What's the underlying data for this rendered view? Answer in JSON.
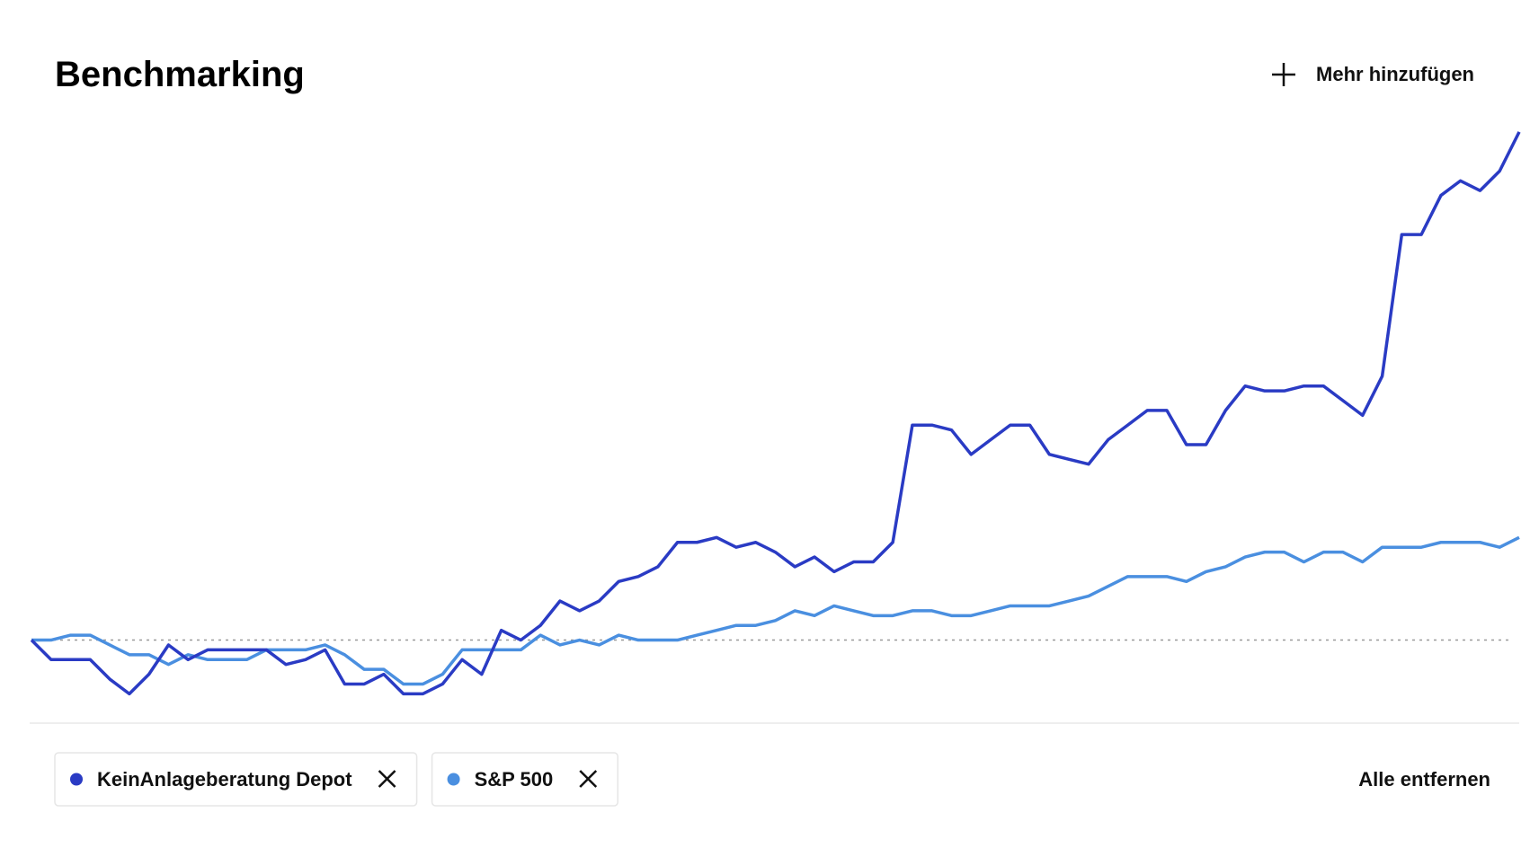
{
  "header": {
    "title": "Benchmarking",
    "add_button": "Mehr hinzufügen"
  },
  "chart_data": {
    "type": "line",
    "series": [
      {
        "name": "KeinAnlageberatung Depot",
        "color": "#2a3bc4",
        "values": [
          0,
          -4,
          -4,
          -4,
          -8,
          -11,
          -7,
          -1,
          -4,
          -2,
          -2,
          -2,
          -2,
          -5,
          -4,
          -2,
          -9,
          -9,
          -7,
          -11,
          -11,
          -9,
          -4,
          -7,
          2,
          0,
          3,
          8,
          6,
          8,
          12,
          13,
          15,
          20,
          20,
          21,
          19,
          20,
          18,
          15,
          17,
          14,
          16,
          16,
          20,
          44,
          44,
          43,
          38,
          41,
          44,
          44,
          38,
          37,
          36,
          41,
          44,
          47,
          47,
          40,
          40,
          47,
          52,
          51,
          51,
          52,
          52,
          49,
          46,
          54,
          83,
          83,
          91,
          94,
          92,
          96,
          104
        ]
      },
      {
        "name": "S&P 500",
        "color": "#4a8fe0",
        "values": [
          0,
          0,
          1,
          1,
          -1,
          -3,
          -3,
          -5,
          -3,
          -4,
          -4,
          -4,
          -2,
          -2,
          -2,
          -1,
          -3,
          -6,
          -6,
          -9,
          -9,
          -7,
          -2,
          -2,
          -2,
          -2,
          1,
          -1,
          0,
          -1,
          1,
          0,
          0,
          0,
          1,
          2,
          3,
          3,
          4,
          6,
          5,
          7,
          6,
          5,
          5,
          6,
          6,
          5,
          5,
          6,
          7,
          7,
          7,
          8,
          9,
          11,
          13,
          13,
          13,
          12,
          14,
          15,
          17,
          18,
          18,
          16,
          18,
          18,
          16,
          19,
          19,
          19,
          20,
          20,
          20,
          19,
          21
        ]
      }
    ],
    "ylim": [
      -17,
      106
    ],
    "reference_line": 0
  },
  "remove_all": "Alle entfernen"
}
